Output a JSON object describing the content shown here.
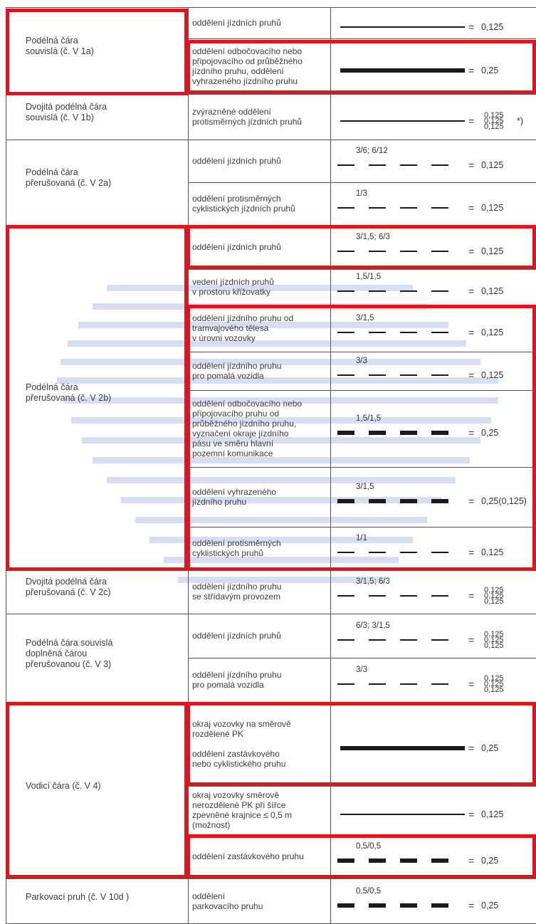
{
  "rows": [
    {
      "type": "Podélná čára\nsouvislá (č. V 1a)",
      "items": [
        {
          "desc": "oddělení jízdních pruhů",
          "mark": "",
          "width": "0,125"
        },
        {
          "desc": "oddělení odbočovacího nebo\npřipojovacího od průběžného\njízdního pruhu, oddělení\nvyhrazeného jízdního pruhu",
          "mark": "",
          "width": "0,25"
        }
      ]
    },
    {
      "type": "Dvojitá podélná čára\nsouvislá (č. V 1b)",
      "items": [
        {
          "desc": "zvýrazněné oddělení\nprotisměrných jízdních pruhů",
          "mark": "",
          "widths": [
            "0,125",
            "0,125",
            "0,125"
          ],
          "note": "*)"
        }
      ]
    },
    {
      "type": "Podélná čára\npřerušovaná (č. V 2a)",
      "items": [
        {
          "desc": "oddělení jízdních pruhů",
          "mark": "3/6; 6/12",
          "width": "0,125"
        },
        {
          "desc": "oddělení protisměrných\ncyklistických jízdních pruhů",
          "mark": "1/3",
          "width": "0,125"
        }
      ]
    },
    {
      "type": "Podélná čára\npřerušovaná (č. V 2b)",
      "items": [
        {
          "desc": "oddělení jízdních pruhů",
          "mark": "3/1,5;  6/3",
          "width": "0,125"
        },
        {
          "desc": "vedení jízdních pruhů\nv prostoru křižovatky",
          "mark": "1,5/1,5",
          "width": "0,125"
        },
        {
          "desc": "oddělení jízdního pruhu od\ntramvajového tělesa\nv úrovni vozovky",
          "mark": "3/1,5",
          "width": "0,125"
        },
        {
          "desc": "oddělení jízdního pruhu\npro pomalá vozidla",
          "mark": "3/3",
          "width": "0,125"
        },
        {
          "desc": "oddělení odbočovacího nebo\npřipojovacího pruhu od\nprůběžného jízdního pruhu,\nvyznačení okraje jízdního\npásu ve směru hlavní\npozemní komunikace",
          "mark": "1,5/1,5",
          "width": "0,25"
        },
        {
          "desc": "oddělení vyhrazeného\njízdního pruhu",
          "mark": "3/1,5",
          "width": "0,25(0,125)"
        },
        {
          "desc": "oddělení protisměrných\ncyklistických pruhů",
          "mark": "1/1",
          "width": "0,125"
        }
      ]
    },
    {
      "type": "Dvojitá podélná čára\npřerušovaná (č. V 2c)",
      "items": [
        {
          "desc": "oddělení jízdního pruhu\nse střídavým provozem",
          "mark": "3/1,5; 6/3",
          "widths": [
            "0,125",
            "0,125",
            "0,125"
          ]
        }
      ]
    },
    {
      "type": "Podélná čára souvislá\ndoplněná čárou\npřerušovanou (č. V 3)",
      "items": [
        {
          "desc": "oddělení jízdních pruhů",
          "mark": "6/3; 3/1,5",
          "widths": [
            "0,125",
            "0,125",
            "0,125"
          ]
        },
        {
          "desc": "oddělení jízdního pruhu\npro pomalá vozidla",
          "mark": "3/3",
          "widths": [
            "0,125",
            "0,125",
            "0,125"
          ]
        }
      ]
    },
    {
      "type": "Vodicí čára (č. V 4)",
      "items": [
        {
          "desc": "okraj vozovky na směrově\nrozdělené PK\n\noddělení zastávkového\nnebo cyklistického pruhu",
          "mark": "",
          "width": "0,25"
        },
        {
          "desc": "okraj vozovky směrově\nnerozdělené PK při šířce\nzpevněné krajnice  ≤ 0,5 m\n(možnost)",
          "mark": "",
          "width": "0,125"
        },
        {
          "desc": "oddělení zastávkového pruhu",
          "mark": "0,5/0,5",
          "width": "0,25"
        }
      ]
    },
    {
      "type": "Parkovací pruh (č. V 10d )",
      "items": [
        {
          "desc": "oddělení\nparkovacího pruhu",
          "mark": "0,5/0,5",
          "width": "0,25"
        }
      ]
    }
  ],
  "colors": {
    "highlight": "#e0141f",
    "watermark": "#c9d3ec",
    "rule": "#555555"
  }
}
